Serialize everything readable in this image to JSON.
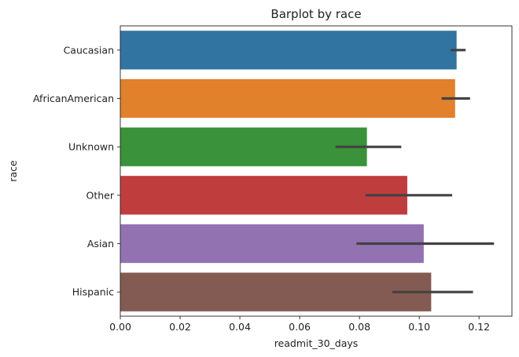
{
  "chart_data": {
    "type": "bar",
    "orientation": "horizontal",
    "title": "Barplot by race",
    "xlabel": "readmit_30_days",
    "ylabel": "race",
    "xlim": [
      0,
      0.131
    ],
    "xticks": [
      "0.00",
      "0.02",
      "0.04",
      "0.06",
      "0.08",
      "0.10",
      "0.12"
    ],
    "xtick_values": [
      0,
      0.02,
      0.04,
      0.06,
      0.08,
      0.1,
      0.12
    ],
    "categories": [
      "Caucasian",
      "AfricanAmerican",
      "Unknown",
      "Other",
      "Asian",
      "Hispanic"
    ],
    "values": [
      0.1125,
      0.112,
      0.0825,
      0.096,
      0.1015,
      0.104
    ],
    "error_low": [
      0.1105,
      0.1075,
      0.072,
      0.082,
      0.079,
      0.091
    ],
    "error_high": [
      0.1155,
      0.117,
      0.094,
      0.111,
      0.125,
      0.118
    ],
    "colors": [
      "#3274a1",
      "#e1812c",
      "#3a923a",
      "#c03d3e",
      "#9372b2",
      "#845b53"
    ],
    "grid": false
  }
}
